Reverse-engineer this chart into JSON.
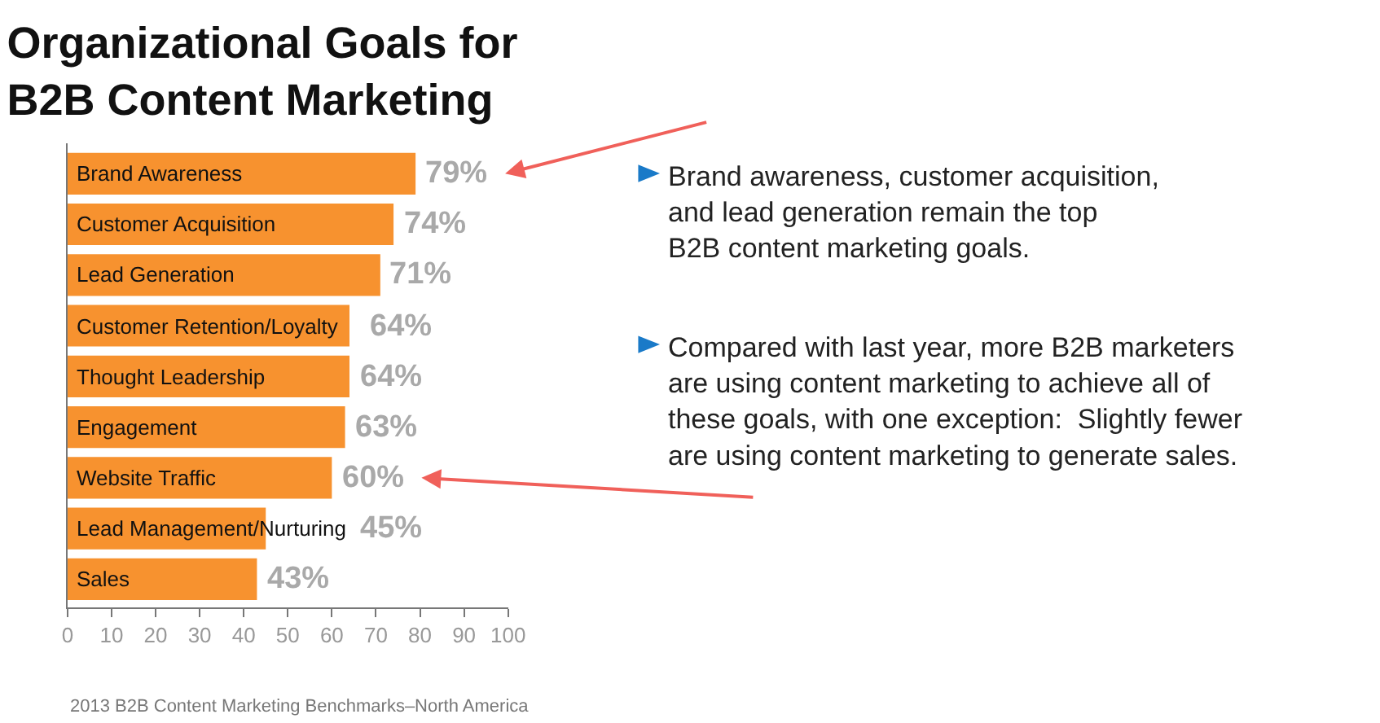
{
  "chart_data": {
    "type": "bar",
    "orientation": "horizontal",
    "title": "Organizational Goals for\nB2B Content Marketing",
    "categories": [
      "Brand Awareness",
      "Customer Acquisition",
      "Lead Generation",
      "Customer Retention/Loyalty",
      "Thought Leadership",
      "Engagement",
      "Website Traffic",
      "Lead Management/Nurturing",
      "Sales"
    ],
    "values": [
      79,
      74,
      71,
      64,
      64,
      63,
      60,
      45,
      43
    ],
    "value_labels": [
      "79%",
      "74%",
      "71%",
      "64%",
      "64%",
      "63%",
      "60%",
      "45%",
      "43%"
    ],
    "color": "#f7922f",
    "xlim": [
      0,
      100
    ],
    "xticks": [
      0,
      10,
      20,
      30,
      40,
      50,
      60,
      70,
      80,
      90,
      100
    ],
    "legend": false,
    "annotations": [
      "Brand awareness, customer acquisition,\nand lead generation remain the top\nB2B content marketing goals.",
      "Compared with last year, more B2B marketers\nare using content marketing to achieve all of\nthese goals, with one exception:  Slightly fewer\nare using content marketing to generate sales.",
      "2013 B2B Content Marketing Benchmarks–North America"
    ]
  }
}
